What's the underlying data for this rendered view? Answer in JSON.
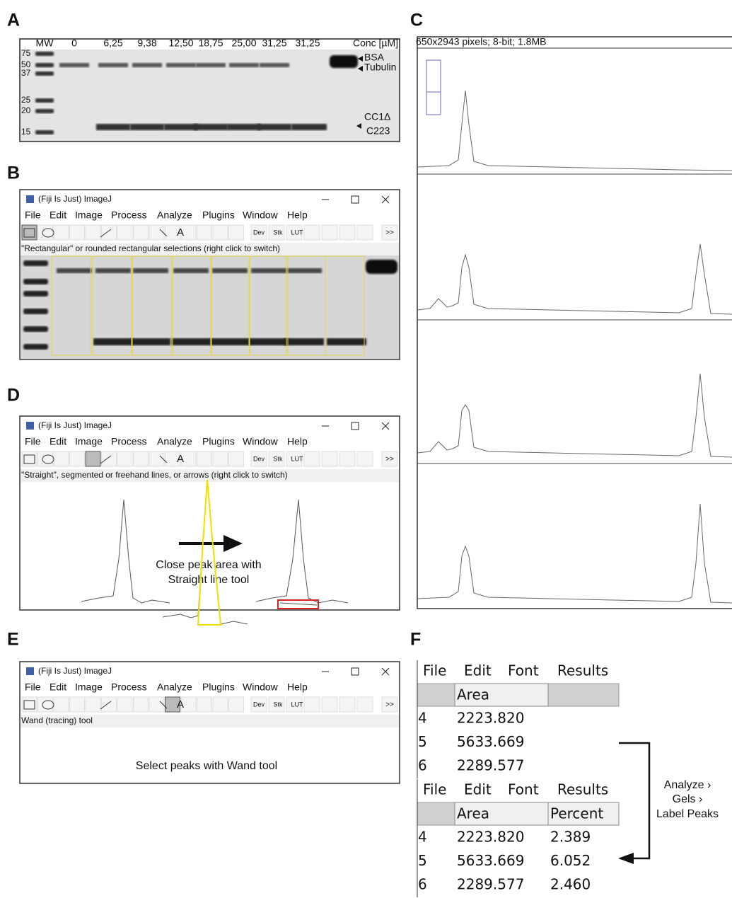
{
  "panels": {
    "A": {
      "label": "A",
      "header": [
        "MW",
        "0",
        "6,25",
        "9,38",
        "12,50",
        "18,75",
        "25,00",
        "31,25",
        "31,25",
        "Conc [µM]"
      ],
      "mw_markers": [
        "75",
        "50",
        "37",
        "25",
        "20",
        "15"
      ],
      "band_labels": [
        "BSA",
        "Tubulin",
        "CC1Δ",
        "C223"
      ]
    },
    "B": {
      "label": "B",
      "window_title": "(Fiji Is Just) ImageJ",
      "menu": [
        "File",
        "Edit",
        "Image",
        "Process",
        "Analyze",
        "Plugins",
        "Window",
        "Help"
      ],
      "toolbar": [
        "A",
        "Dev",
        "Stk",
        "LUT",
        ">>"
      ],
      "status": "\"Rectangular\" or rounded rectangular selections (right click to switch)"
    },
    "C": {
      "label": "C",
      "image_info": "650x2943 pixels; 8-bit; 1.8MB"
    },
    "D": {
      "label": "D",
      "window_title": "(Fiji Is Just) ImageJ",
      "menu": [
        "File",
        "Edit",
        "Image",
        "Process",
        "Analyze",
        "Plugins",
        "Window",
        "Help"
      ],
      "toolbar": [
        "A",
        "Dev",
        "Stk",
        "LUT",
        ">>"
      ],
      "status": "\"Straight\", segmented or freehand lines, or arrows (right click to switch)",
      "annotation": [
        "Close peak area with",
        "Straight line tool"
      ]
    },
    "E": {
      "label": "E",
      "window_title": "(Fiji Is Just) ImageJ",
      "menu": [
        "File",
        "Edit",
        "Image",
        "Process",
        "Analyze",
        "Plugins",
        "Window",
        "Help"
      ],
      "toolbar": [
        "A",
        "Dev",
        "Stk",
        "LUT",
        ">>"
      ],
      "status": "Wand (tracing) tool",
      "annotation": "Select peaks with Wand tool"
    },
    "F": {
      "label": "F",
      "menu": [
        "File",
        "Edit",
        "Font",
        "Results"
      ],
      "table1": {
        "header": [
          "Area"
        ],
        "rows": [
          [
            "4",
            "2223.820"
          ],
          [
            "5",
            "5633.669"
          ],
          [
            "6",
            "2289.577"
          ]
        ]
      },
      "table2": {
        "header": [
          "Area",
          "Percent"
        ],
        "rows": [
          [
            "4",
            "2223.820",
            "2.389"
          ],
          [
            "5",
            "5633.669",
            "6.052"
          ],
          [
            "6",
            "2289.577",
            "2.460"
          ]
        ]
      },
      "arrow_label": [
        "Analyze ›",
        "Gels ›",
        "Label Peaks"
      ]
    }
  }
}
